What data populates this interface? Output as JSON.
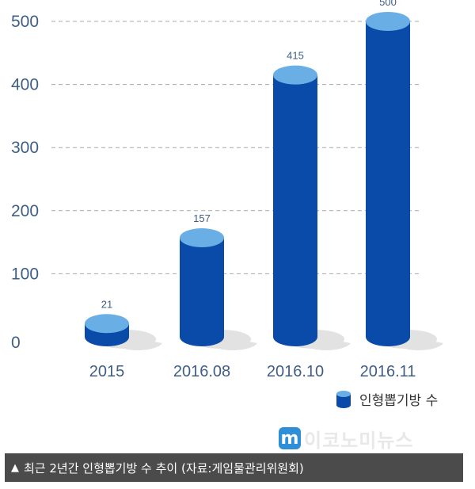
{
  "chart_data": {
    "type": "bar",
    "categories": [
      "2015",
      "2016.08",
      "2016.10",
      "2016.11"
    ],
    "series": [
      {
        "name": "인형뽑기방 수",
        "values": [
          21,
          157,
          415,
          500
        ]
      }
    ],
    "yticks": [
      "0",
      "100",
      "200",
      "300",
      "400",
      "500"
    ],
    "ylim": [
      0,
      500
    ],
    "grid": true,
    "legend_position": "bottom-right",
    "colors": {
      "bar_body": "#0a4aa8",
      "bar_top": "#6aaee6",
      "shadow": "#e2e2e2",
      "grid": "#a9a9a9"
    }
  },
  "caption": {
    "marker": "▲",
    "text": "최근 2년간 인형뽑기방 수 추이 (자료:게임물관리위원회)"
  },
  "logo": {
    "mark": "m",
    "text": "이코노미뉴스"
  }
}
